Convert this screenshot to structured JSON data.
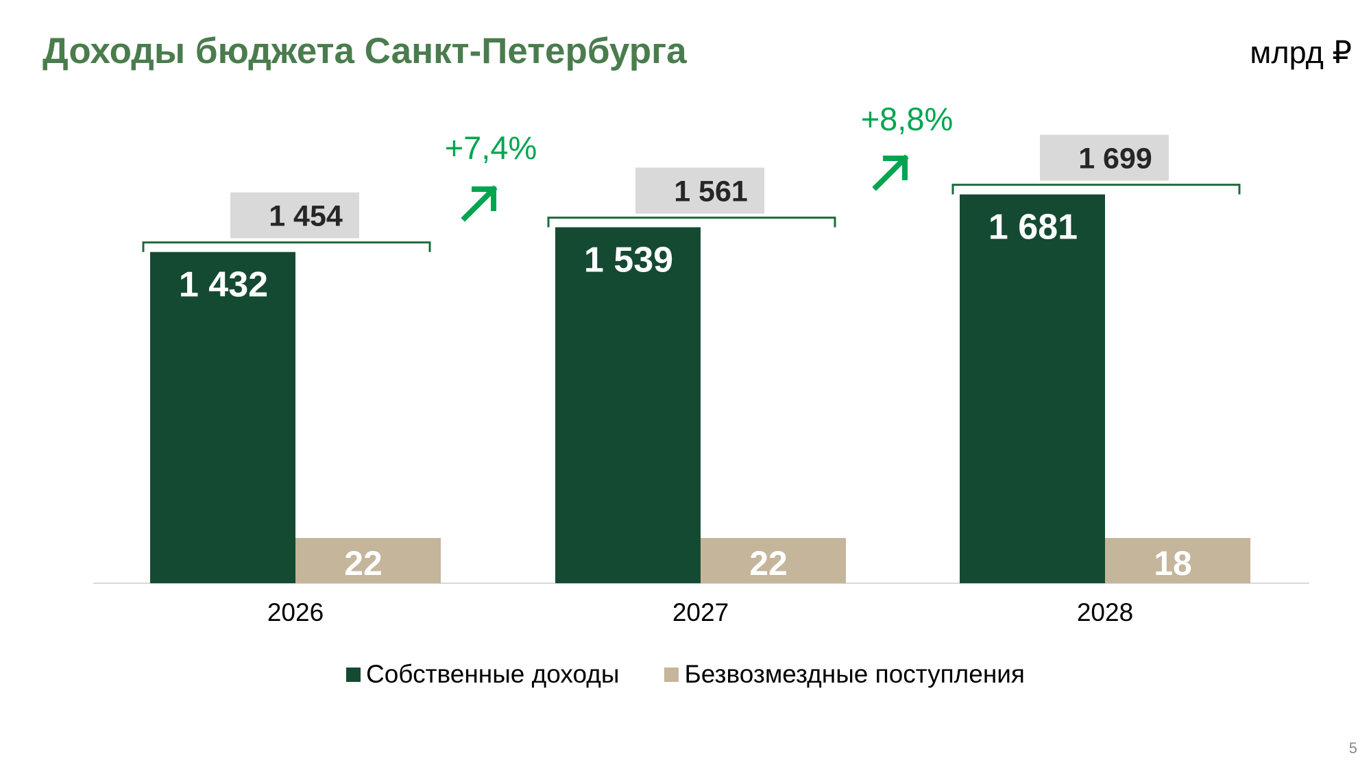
{
  "slide": {
    "title": "Доходы бюджета Санкт-Петербурга",
    "unit": "млрд ₽",
    "page_number": "5"
  },
  "chart_data": {
    "type": "bar",
    "title": "Доходы бюджета Санкт-Петербурга",
    "unit": "млрд ₽",
    "categories": [
      "2026",
      "2027",
      "2028"
    ],
    "series": [
      {
        "name": "Собственные доходы",
        "values": [
          1432,
          1539,
          1681
        ],
        "labels": [
          "1 432",
          "1 539",
          "1 681"
        ],
        "color": "#154a32"
      },
      {
        "name": "Безвозмездные поступления",
        "values": [
          22,
          22,
          18
        ],
        "labels": [
          "22",
          "22",
          "18"
        ],
        "color": "#c4b59b"
      }
    ],
    "totals": {
      "values": [
        1454,
        1561,
        1699
      ],
      "labels": [
        "1 454",
        "1 561",
        "1 699"
      ]
    },
    "growth": [
      {
        "from": "2026",
        "to": "2027",
        "label": "+7,4%"
      },
      {
        "from": "2027",
        "to": "2028",
        "label": "+8,8%"
      }
    ],
    "legend_position": "bottom",
    "grid": false,
    "colors": {
      "total_box": "#d9d9d9",
      "bracket": "#1b6b3a",
      "growth": "#00a550",
      "axis": "#d9d9d9"
    }
  }
}
